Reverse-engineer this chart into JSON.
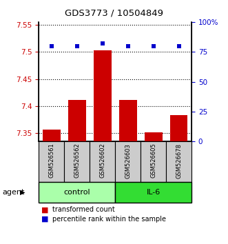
{
  "title": "GDS3773 / 10504849",
  "samples": [
    "GSM526561",
    "GSM526562",
    "GSM526602",
    "GSM526603",
    "GSM526605",
    "GSM526678"
  ],
  "transformed_counts": [
    7.357,
    7.412,
    7.503,
    7.412,
    7.352,
    7.383
  ],
  "percentile_ranks": [
    80,
    80,
    82,
    80,
    80,
    80
  ],
  "ylim_left": [
    7.335,
    7.555
  ],
  "ylim_right": [
    0,
    100
  ],
  "yticks_left": [
    7.35,
    7.4,
    7.45,
    7.5,
    7.55
  ],
  "yticks_right": [
    0,
    25,
    50,
    75,
    100
  ],
  "ytick_labels_left": [
    "7.35",
    "7.4",
    "7.45",
    "7.5",
    "7.55"
  ],
  "ytick_labels_right": [
    "0",
    "25",
    "50",
    "75",
    "100%"
  ],
  "bar_color": "#cc0000",
  "marker_color": "#0000cc",
  "control_label": "control",
  "il6_label": "IL-6",
  "agent_label": "agent",
  "legend_bar_label": "transformed count",
  "legend_marker_label": "percentile rank within the sample",
  "control_color": "#aaffaa",
  "il6_color": "#33dd33",
  "label_box_color": "#cccccc",
  "bar_width": 0.7,
  "baseline": 7.335,
  "background_color": "#ffffff"
}
